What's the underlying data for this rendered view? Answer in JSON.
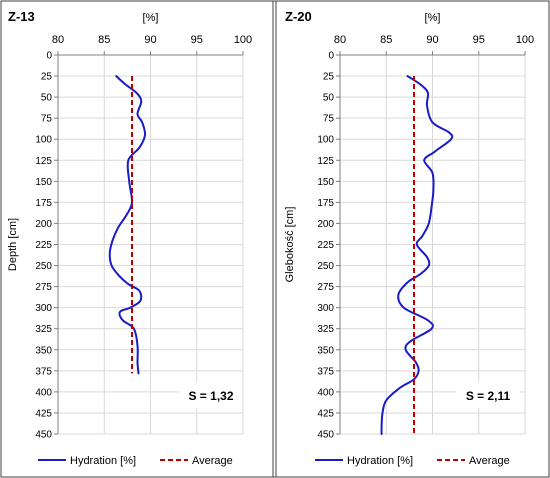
{
  "colors": {
    "hydration": "#1a1ac8",
    "average": "#c00000",
    "grid": "#d9d9d9",
    "axis": "#7f7f7f",
    "frame": "#404040"
  },
  "chart_data": [
    {
      "type": "line",
      "title": "Z-13",
      "xlabel": "[%]",
      "ylabel": "Depth [cm]",
      "xlim": [
        80,
        100
      ],
      "ylim": [
        0,
        450
      ],
      "y_inverted": true,
      "x_axis_position": "top",
      "xticks": [
        "80",
        "85",
        "90",
        "95",
        "100"
      ],
      "yticks": [
        "0",
        "25",
        "50",
        "75",
        "100",
        "125",
        "150",
        "175",
        "200",
        "225",
        "250",
        "275",
        "300",
        "325",
        "350",
        "375",
        "400",
        "425",
        "450"
      ],
      "grid": true,
      "legend_position": "bottom",
      "annotation": "S = 1,32",
      "series": [
        {
          "name": "Hydration [%]",
          "style": "solid",
          "x": [
            86.3,
            87.3,
            88.5,
            89.0,
            88.6,
            89.1,
            89.4,
            88.8,
            87.6,
            87.7,
            88.0,
            87.4,
            86.5,
            85.9,
            85.6,
            85.8,
            86.6,
            87.6,
            88.8,
            88.9,
            87.8,
            86.7,
            87.0,
            88.2,
            88.6,
            88.6,
            88.7
          ],
          "y": [
            25,
            35,
            45,
            55,
            70,
            80,
            95,
            110,
            125,
            150,
            175,
            190,
            205,
            220,
            235,
            250,
            262,
            272,
            280,
            292,
            300,
            305,
            315,
            325,
            345,
            365,
            378
          ]
        },
        {
          "name": "Average",
          "style": "dashed",
          "x": [
            88.0,
            88.0
          ],
          "y": [
            25,
            378
          ]
        }
      ]
    },
    {
      "type": "line",
      "title": "Z-20",
      "xlabel": "[%]",
      "ylabel": "Glebokość [cm]",
      "xlim": [
        80,
        100
      ],
      "ylim": [
        0,
        450
      ],
      "y_inverted": true,
      "x_axis_position": "top",
      "xticks": [
        "80",
        "85",
        "90",
        "95",
        "100"
      ],
      "yticks": [
        "0",
        "25",
        "50",
        "75",
        "100",
        "125",
        "150",
        "175",
        "200",
        "225",
        "250",
        "275",
        "300",
        "325",
        "350",
        "375",
        "400",
        "425",
        "450"
      ],
      "grid": true,
      "legend_position": "bottom",
      "annotation": "S = 2,11",
      "series": [
        {
          "name": "Hydration [%]",
          "style": "solid",
          "x": [
            87.3,
            88.7,
            89.5,
            89.4,
            90.0,
            91.8,
            92.0,
            90.2,
            89.1,
            90.0,
            90.1,
            89.9,
            89.6,
            88.9,
            88.3,
            89.4,
            89.6,
            88.7,
            87.3,
            86.3,
            86.9,
            89.5,
            89.9,
            87.6,
            87.1,
            88.2,
            88.5,
            88.0,
            86.5,
            85.0,
            84.6,
            84.5,
            84.5
          ],
          "y": [
            25,
            35,
            45,
            60,
            80,
            92,
            100,
            115,
            125,
            140,
            160,
            180,
            200,
            215,
            225,
            240,
            250,
            260,
            270,
            285,
            300,
            315,
            325,
            340,
            350,
            365,
            375,
            385,
            395,
            410,
            425,
            440,
            450
          ]
        },
        {
          "name": "Average",
          "style": "dashed",
          "x": [
            88.0,
            88.0
          ],
          "y": [
            25,
            450
          ]
        }
      ]
    }
  ]
}
